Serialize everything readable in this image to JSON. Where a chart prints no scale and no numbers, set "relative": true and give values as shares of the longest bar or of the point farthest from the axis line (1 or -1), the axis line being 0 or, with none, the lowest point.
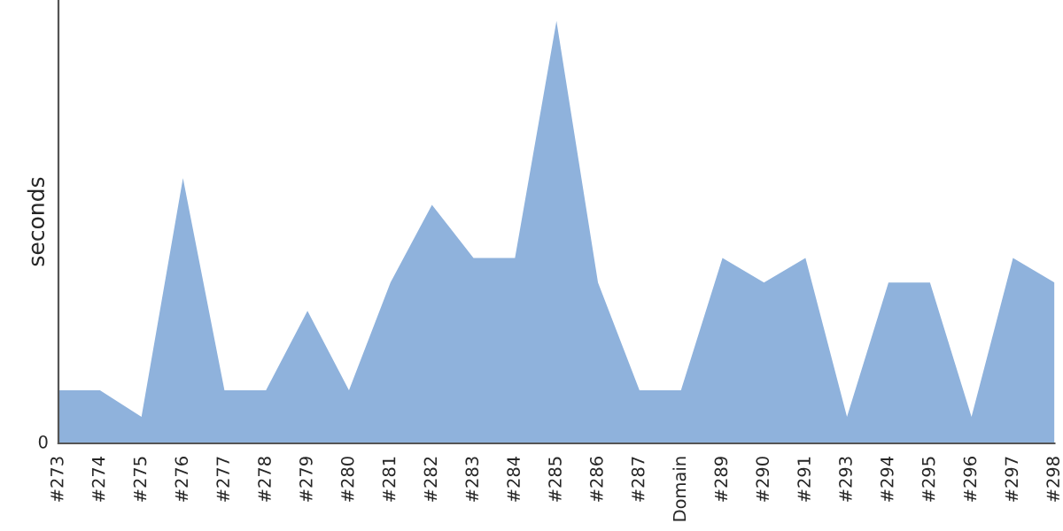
{
  "chart_data": {
    "type": "area",
    "ylabel": "seconds",
    "relative": true,
    "annotations": [
      "0"
    ],
    "categories": [
      "#273",
      "#274",
      "#275",
      "#276",
      "#277",
      "#278",
      "#279",
      "#280",
      "#281",
      "#282",
      "#283",
      "#284",
      "#285",
      "#286",
      "#287",
      "Domain",
      "#289",
      "#290",
      "#291",
      "#293",
      "#294",
      "#295",
      "#296",
      "#297",
      "#298"
    ],
    "series": [
      {
        "color": "#8fb2dc",
        "values": [
          0.126,
          0.126,
          0.063,
          0.628,
          0.126,
          0.126,
          0.314,
          0.126,
          0.381,
          0.565,
          0.439,
          0.439,
          1,
          0.381,
          0.126,
          0.126,
          0.439,
          0.381,
          0.439,
          0.063,
          0.381,
          0.381,
          0.063,
          0.439,
          0.381
        ]
      }
    ],
    "grid": false,
    "legend": false
  }
}
